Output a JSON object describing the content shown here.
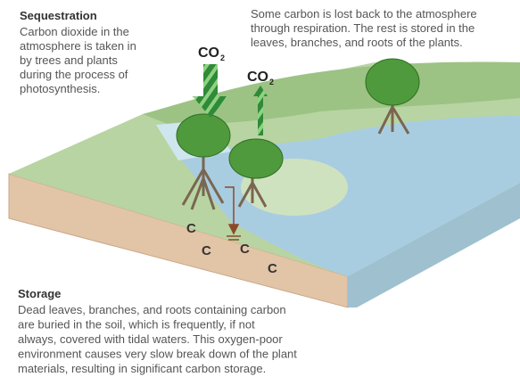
{
  "sequestration": {
    "title": "Sequestration",
    "lines": [
      "Carbon dioxide in the",
      "atmosphere is taken in",
      "by trees and plants",
      "during the process of",
      "photosynthesis."
    ]
  },
  "respiration": {
    "lines": [
      "Some carbon is lost back to the atmosphere",
      "through respiration. The rest is stored in the",
      "leaves, branches, and roots of the plants."
    ]
  },
  "co2_labels": [
    {
      "main": "CO",
      "sub": "2"
    },
    {
      "main": "CO",
      "sub": "2"
    }
  ],
  "soil_carbon": [
    "C",
    "C",
    "C",
    "C"
  ],
  "storage": {
    "title": "Storage",
    "lines": [
      "Dead leaves, branches, and roots containing carbon",
      "are buried in the soil, which is frequently, if not",
      "always, covered with tidal waters. This oxygen-poor",
      "environment causes very slow break down of the plant",
      "materials, resulting in significant carbon storage."
    ]
  }
}
